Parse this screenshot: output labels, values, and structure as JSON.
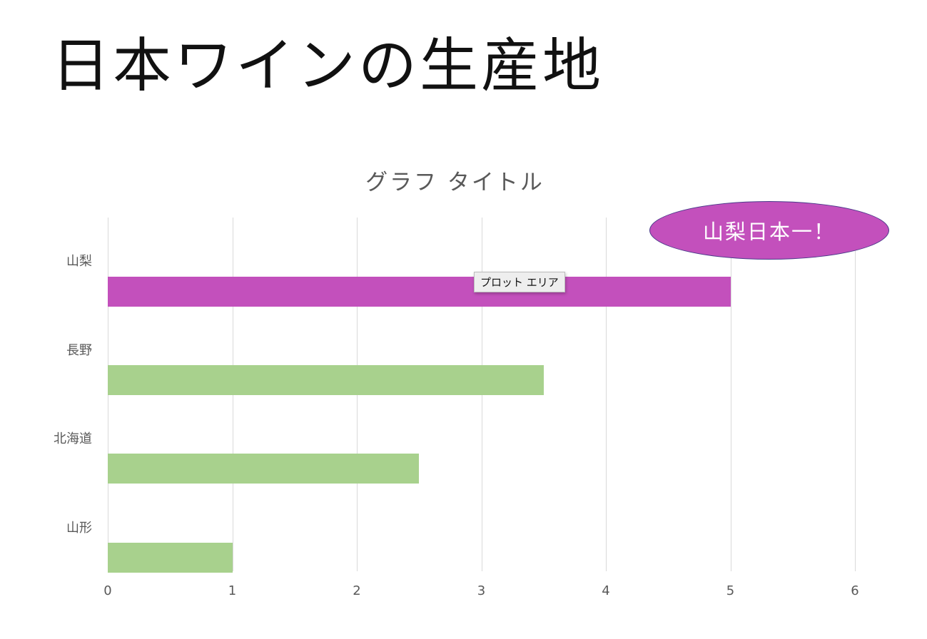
{
  "slide": {
    "title": "日本ワインの生産地"
  },
  "colors": {
    "highlight_bar": "#c350bc",
    "normal_bar": "#a8d18d",
    "gridline": "#d9d9d9",
    "axis_text": "#595959",
    "callout_fill": "#c350bc",
    "callout_border": "#4a3a8a"
  },
  "callout": {
    "text": "山梨日本一！"
  },
  "tooltip": {
    "text": "プロット エリア"
  },
  "chart_data": {
    "type": "bar",
    "orientation": "horizontal",
    "title": "グラフ タイトル",
    "categories": [
      "山梨",
      "長野",
      "北海道",
      "山形"
    ],
    "values": [
      5,
      3.5,
      2.5,
      1
    ],
    "bar_colors": [
      "#c350bc",
      "#a8d18d",
      "#a8d18d",
      "#a8d18d"
    ],
    "xlabel": "",
    "ylabel": "",
    "xlim": [
      0,
      6
    ],
    "xticks": [
      "0",
      "1",
      "2",
      "3",
      "4",
      "5",
      "6"
    ],
    "grid": "vertical",
    "legend": "none",
    "annotations": [
      "山梨日本一！"
    ]
  }
}
